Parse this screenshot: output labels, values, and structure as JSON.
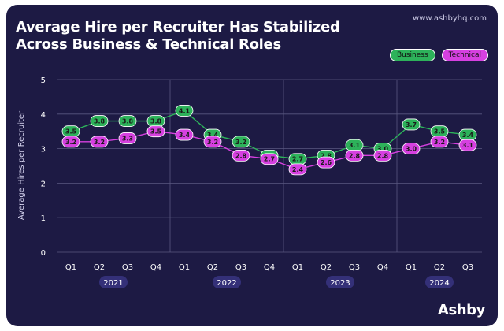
{
  "header": {
    "title_line1": "Average Hire per Recruiter Has Stabilized",
    "title_line2": "Across Business & Technical Roles",
    "site": "www.ashbyhq.com"
  },
  "legend": {
    "business": "Business",
    "technical": "Technical"
  },
  "brand": "Ashby",
  "colors": {
    "background": "#1d1a44",
    "business": "#2db25a",
    "technical": "#d640e0",
    "grid": "#5a5880"
  },
  "chart_data": {
    "type": "line",
    "title": "Average Hire per Recruiter Has Stabilized Across Business & Technical Roles",
    "xlabel": "",
    "ylabel": "Average Hires per Recruiter",
    "ylim": [
      0,
      5
    ],
    "yticks": [
      0,
      1,
      2,
      3,
      4,
      5
    ],
    "categories": [
      "Q1",
      "Q2",
      "Q3",
      "Q4",
      "Q1",
      "Q2",
      "Q3",
      "Q4",
      "Q1",
      "Q2",
      "Q3",
      "Q4",
      "Q1",
      "Q2",
      "Q3"
    ],
    "years": [
      {
        "label": "2021",
        "quarters": 4
      },
      {
        "label": "2022",
        "quarters": 4
      },
      {
        "label": "2023",
        "quarters": 4
      },
      {
        "label": "2024",
        "quarters": 3
      }
    ],
    "series": [
      {
        "name": "Business",
        "values": [
          3.5,
          3.8,
          3.8,
          3.8,
          4.1,
          3.4,
          3.2,
          2.8,
          2.7,
          2.8,
          3.1,
          3.0,
          3.7,
          3.5,
          3.4
        ],
        "labels": [
          "3.5",
          "3.8",
          "3.8",
          "3.8",
          "4.1",
          "3.4",
          "3.2",
          "2.8",
          "2.7",
          "2.8",
          "3.1",
          "3.0",
          "3.7",
          "3.5",
          "3.4"
        ]
      },
      {
        "name": "Technical",
        "values": [
          3.2,
          3.2,
          3.3,
          3.5,
          3.4,
          3.2,
          2.8,
          2.7,
          2.4,
          2.6,
          2.8,
          2.8,
          3.0,
          3.2,
          3.1
        ],
        "labels": [
          "3.2",
          "3.2",
          "3.3",
          "3.5",
          "3.4",
          "3.2",
          "2.8",
          "2.7",
          "2.4",
          "2.6",
          "2.8",
          "2.8",
          "3.0",
          "3.2",
          "3.1"
        ]
      }
    ]
  }
}
